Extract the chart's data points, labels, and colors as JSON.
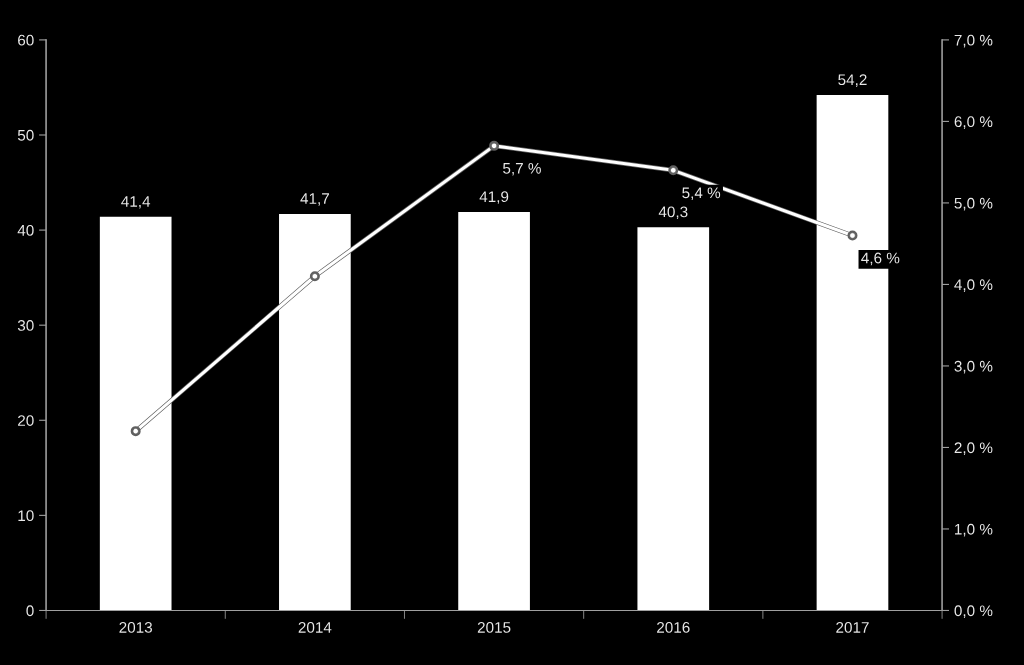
{
  "chart_data": {
    "categories": [
      "2013",
      "2014",
      "2015",
      "2016",
      "2017"
    ],
    "series": [
      {
        "color": "#ffffff",
        "values": [
          41.4,
          41.7,
          41.9,
          40.3,
          54.2
        ],
        "value_labels": [
          "41,4",
          "41,7",
          "41,9",
          "40,3",
          "54,2"
        ]
      },
      {
        "type": "line",
        "axis": "y2",
        "color": "#ffffff",
        "values": [
          2.2,
          4.1,
          5.7,
          5.4,
          4.6
        ],
        "value_labels": [
          null,
          null,
          "5,7 %",
          "5,4 %",
          "4,6 %"
        ]
      }
    ],
    "ylim": [
      0,
      60
    ],
    "yticks": [
      0,
      10,
      20,
      30,
      40,
      50,
      60
    ],
    "y2lim": [
      0,
      7
    ],
    "y2ticks": [
      {
        "value": 0,
        "label": "0,0 %"
      },
      {
        "value": 1,
        "label": "1,0 %"
      },
      {
        "value": 2,
        "label": "2,0 %"
      },
      {
        "value": 3,
        "label": "3,0 %"
      },
      {
        "value": 4,
        "label": "4,0 %"
      },
      {
        "value": 5,
        "label": "5,0 %"
      },
      {
        "value": 6,
        "label": "6,0 %"
      },
      {
        "value": 7,
        "label": "7,0 %"
      }
    ],
    "type": "bar",
    "marker": "circle",
    "line_style": "solid",
    "grid": false,
    "legend": false
  }
}
